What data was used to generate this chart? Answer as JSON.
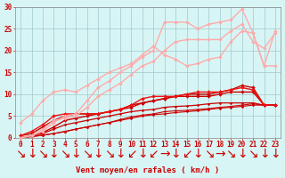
{
  "background_color": "#d8f5f5",
  "grid_color": "#a0c8c8",
  "x_min": 0,
  "x_max": 23,
  "y_min": 0,
  "y_max": 30,
  "xlabel": "Vent moyen/en rafales ( km/h )",
  "xlabel_color": "#cc0000",
  "xlabel_fontsize": 6.5,
  "tick_color": "#cc0000",
  "tick_fontsize": 5.5,
  "ytick_values": [
    0,
    5,
    10,
    15,
    20,
    25,
    30
  ],
  "arrow_labels": [
    "↘",
    "↓",
    "↘",
    "↓",
    "↘",
    "↓",
    "↘",
    "↓",
    "↘",
    "↓",
    "↙",
    "↓",
    "↙",
    "→",
    "↓",
    "↙",
    "↓",
    "↘",
    "→",
    "↘",
    "↓",
    "↘",
    "↓",
    "↓"
  ],
  "series": [
    {
      "x": [
        0,
        1,
        2,
        3,
        4,
        5,
        6,
        7,
        8,
        9,
        10,
        11,
        12,
        13,
        14,
        15,
        16,
        17,
        18,
        19,
        20,
        21,
        22,
        23
      ],
      "y": [
        0.0,
        0.3,
        0.6,
        1.0,
        1.4,
        2.0,
        2.5,
        3.0,
        3.5,
        4.0,
        4.5,
        5.0,
        5.3,
        5.5,
        5.8,
        6.0,
        6.2,
        6.5,
        6.8,
        7.0,
        7.2,
        7.5,
        7.5,
        7.5
      ],
      "color": "#cc0000",
      "lw": 0.8,
      "marker": "D",
      "ms": 1.5
    },
    {
      "x": [
        0,
        1,
        2,
        3,
        4,
        5,
        6,
        7,
        8,
        9,
        10,
        11,
        12,
        13,
        14,
        15,
        16,
        17,
        18,
        19,
        20,
        21,
        22,
        23
      ],
      "y": [
        0.0,
        0.3,
        0.6,
        1.0,
        1.5,
        2.0,
        2.5,
        3.0,
        3.5,
        4.2,
        4.8,
        5.2,
        5.5,
        6.0,
        6.2,
        6.3,
        6.5,
        6.7,
        7.0,
        7.2,
        7.5,
        7.8,
        7.5,
        7.5
      ],
      "color": "#cc0000",
      "lw": 0.8,
      "marker": "D",
      "ms": 1.5
    },
    {
      "x": [
        0,
        1,
        2,
        3,
        4,
        5,
        6,
        7,
        8,
        9,
        10,
        11,
        12,
        13,
        14,
        15,
        16,
        17,
        18,
        19,
        20,
        21,
        22,
        23
      ],
      "y": [
        0.0,
        0.5,
        1.0,
        2.0,
        3.0,
        3.5,
        4.0,
        4.5,
        5.0,
        5.5,
        6.0,
        6.3,
        6.5,
        7.0,
        7.2,
        7.3,
        7.5,
        7.8,
        8.0,
        8.0,
        8.0,
        8.0,
        7.5,
        7.5
      ],
      "color": "#cc0000",
      "lw": 0.9,
      "marker": "D",
      "ms": 1.5
    },
    {
      "x": [
        0,
        1,
        2,
        3,
        4,
        5,
        6,
        7,
        8,
        9,
        10,
        11,
        12,
        13,
        14,
        15,
        16,
        17,
        18,
        19,
        20,
        21,
        22,
        23
      ],
      "y": [
        0.0,
        0.5,
        1.2,
        2.5,
        4.0,
        4.5,
        5.0,
        5.5,
        6.0,
        6.5,
        7.5,
        8.0,
        8.5,
        9.0,
        9.5,
        10.0,
        10.0,
        10.0,
        10.5,
        11.0,
        12.0,
        11.5,
        7.5,
        7.5
      ],
      "color": "#cc0000",
      "lw": 1.0,
      "marker": "D",
      "ms": 2.0
    },
    {
      "x": [
        0,
        1,
        2,
        3,
        4,
        5,
        6,
        7,
        8,
        9,
        10,
        11,
        12,
        13,
        14,
        15,
        16,
        17,
        18,
        19,
        20,
        21,
        22,
        23
      ],
      "y": [
        0.5,
        1.0,
        2.5,
        4.0,
        5.0,
        5.5,
        5.5,
        5.5,
        6.0,
        6.5,
        7.0,
        8.0,
        8.5,
        9.0,
        9.5,
        9.5,
        9.5,
        9.5,
        10.0,
        10.5,
        10.5,
        10.5,
        7.5,
        7.5
      ],
      "color": "#cc0000",
      "lw": 1.0,
      "marker": "D",
      "ms": 2.0
    },
    {
      "x": [
        0,
        1,
        2,
        3,
        4,
        5,
        6,
        7,
        8,
        9,
        10,
        11,
        12,
        13,
        14,
        15,
        16,
        17,
        18,
        19,
        20,
        21,
        22,
        23
      ],
      "y": [
        0.5,
        1.5,
        3.0,
        5.0,
        5.5,
        5.5,
        5.5,
        5.5,
        6.0,
        6.5,
        7.5,
        9.0,
        9.5,
        9.5,
        9.5,
        10.0,
        10.5,
        10.5,
        10.5,
        11.0,
        11.5,
        11.0,
        7.5,
        7.5
      ],
      "color": "#ee1111",
      "lw": 1.0,
      "marker": "D",
      "ms": 2.0
    },
    {
      "x": [
        0,
        1,
        2,
        3,
        4,
        5,
        6,
        7,
        8,
        9,
        10,
        11,
        12,
        13,
        14,
        15,
        16,
        17,
        18,
        19,
        20,
        21,
        22,
        23
      ],
      "y": [
        3.5,
        5.5,
        8.5,
        10.5,
        11.0,
        10.5,
        12.0,
        13.5,
        15.0,
        16.0,
        17.0,
        19.0,
        21.0,
        19.0,
        18.0,
        16.5,
        17.0,
        18.0,
        18.5,
        22.0,
        24.5,
        24.0,
        16.5,
        16.5
      ],
      "color": "#ffaaaa",
      "lw": 1.0,
      "marker": "D",
      "ms": 2.0
    },
    {
      "x": [
        0,
        1,
        2,
        3,
        4,
        5,
        6,
        7,
        8,
        9,
        10,
        11,
        12,
        13,
        14,
        15,
        16,
        17,
        18,
        19,
        20,
        21,
        22,
        23
      ],
      "y": [
        0.0,
        0.5,
        2.0,
        4.0,
        4.5,
        5.0,
        7.0,
        9.5,
        11.0,
        12.5,
        14.5,
        16.5,
        17.5,
        20.0,
        22.0,
        22.5,
        22.5,
        22.5,
        22.5,
        24.5,
        26.0,
        22.0,
        20.5,
        24.0
      ],
      "color": "#ffaaaa",
      "lw": 1.0,
      "marker": "D",
      "ms": 2.0
    },
    {
      "x": [
        0,
        1,
        2,
        3,
        4,
        5,
        6,
        7,
        8,
        9,
        10,
        11,
        12,
        13,
        14,
        15,
        16,
        17,
        18,
        19,
        20,
        21,
        22,
        23
      ],
      "y": [
        0.0,
        0.5,
        1.5,
        3.5,
        5.0,
        5.5,
        8.5,
        11.5,
        13.0,
        15.0,
        16.5,
        18.5,
        20.0,
        26.5,
        26.5,
        26.5,
        25.0,
        26.0,
        26.5,
        27.0,
        29.5,
        24.0,
        16.5,
        24.5
      ],
      "color": "#ffaaaa",
      "lw": 1.0,
      "marker": "D",
      "ms": 2.0
    }
  ]
}
